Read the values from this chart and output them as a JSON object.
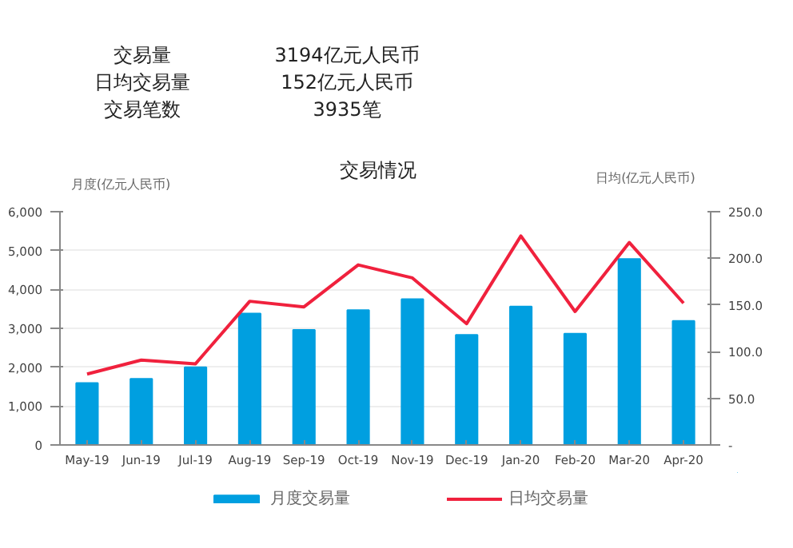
{
  "chart_data": {
    "type": "bar",
    "title": "交易情况",
    "ylabel": "月度(亿元人民币)",
    "y2label": "日均(亿元人民币)",
    "annotations": [
      "交易量",
      "3194亿元人民币",
      "日均交易量",
      "152亿元人民币",
      "交易笔数",
      "3935笔"
    ],
    "categories": [
      "May-19",
      "Jun-19",
      "Jul-19",
      "Aug-19",
      "Sep-19",
      "Oct-19",
      "Nov-19",
      "Dec-19",
      "Jan-20",
      "Feb-20",
      "Mar-20",
      "Apr-20"
    ],
    "series": [
      {
        "name": "月度交易量",
        "color": "#009fe0",
        "values": [
          1590,
          1700,
          2000,
          3380,
          2960,
          3470,
          3750,
          2830,
          3560,
          2860,
          4780,
          3190
        ]
      },
      {
        "name": "日均交易量",
        "type": "line",
        "axis": "y2",
        "color": "#f0213d",
        "values": [
          76,
          91,
          87,
          154,
          148,
          193,
          179,
          130,
          224,
          143,
          217,
          152
        ]
      }
    ],
    "ylim": [
      0,
      6000
    ],
    "yticks": [
      {
        "value": 0,
        "label": "0"
      },
      {
        "value": 1000,
        "label": "1,000"
      },
      {
        "value": 2000,
        "label": "2,000"
      },
      {
        "value": 3000,
        "label": "3,000"
      },
      {
        "value": 4000,
        "label": "4,000"
      },
      {
        "value": 5000,
        "label": "5,000"
      },
      {
        "value": 6000,
        "label": "6,000"
      }
    ],
    "y2lim": [
      0,
      250
    ],
    "y2ticks": [
      {
        "value": 0,
        "label": "-"
      },
      {
        "value": 50,
        "label": "50.0"
      },
      {
        "value": 100,
        "label": "100.0"
      },
      {
        "value": 150,
        "label": "150.0"
      },
      {
        "value": 200,
        "label": "200.0"
      },
      {
        "value": 250,
        "label": "250.0"
      }
    ],
    "grid": "y",
    "legend": "bottom"
  }
}
